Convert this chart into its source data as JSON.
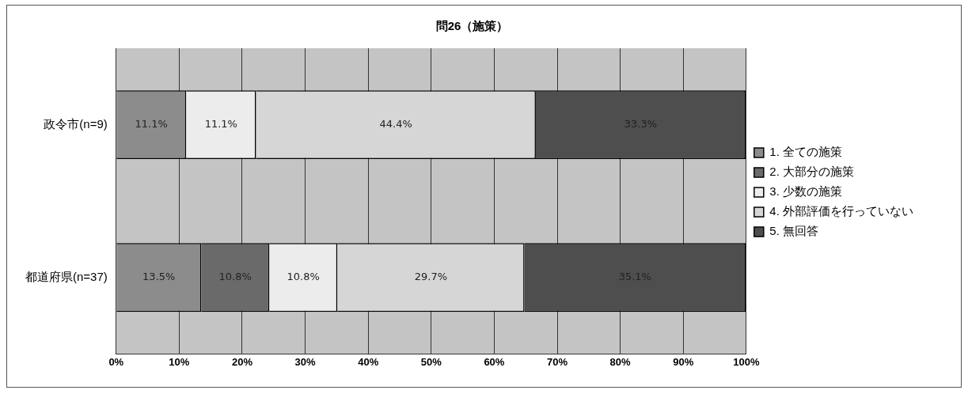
{
  "chart_data": {
    "type": "bar",
    "title": "問26（施策）",
    "orientation": "horizontal",
    "stacked": true,
    "categories": [
      "政令市(n=9)",
      "都道府県(n=37)"
    ],
    "series": [
      {
        "name": "1. 全ての施策",
        "color": "#8c8c8c",
        "values": [
          11.1,
          13.5
        ],
        "value_labels": [
          "11.1%",
          "13.5%"
        ]
      },
      {
        "name": "2. 大部分の施策",
        "color": "#6a6a6a",
        "values": [
          0,
          10.8
        ],
        "value_labels": [
          null,
          "10.8%"
        ]
      },
      {
        "name": "3. 少数の施策",
        "color": "#ececec",
        "values": [
          11.1,
          10.8
        ],
        "value_labels": [
          "11.1%",
          "10.8%"
        ]
      },
      {
        "name": "4. 外部評価を行っていない",
        "color": "#d6d6d6",
        "values": [
          44.4,
          29.7
        ],
        "value_labels": [
          "44.4%",
          "29.7%"
        ]
      },
      {
        "name": "5. 無回答",
        "color": "#4e4e4e",
        "values": [
          33.3,
          35.1
        ],
        "value_labels": [
          "33.3%",
          "35.1%"
        ]
      }
    ],
    "xlim": [
      0,
      100
    ],
    "xticks": [
      {
        "value": 0,
        "label": "0%"
      },
      {
        "value": 10,
        "label": "10%"
      },
      {
        "value": 20,
        "label": "20%"
      },
      {
        "value": 30,
        "label": "30%"
      },
      {
        "value": 40,
        "label": "40%"
      },
      {
        "value": 50,
        "label": "50%"
      },
      {
        "value": 60,
        "label": "60%"
      },
      {
        "value": 70,
        "label": "70%"
      },
      {
        "value": 80,
        "label": "80%"
      },
      {
        "value": 90,
        "label": "90%"
      },
      {
        "value": 100,
        "label": "100%"
      }
    ],
    "grid": "x",
    "legend": "right"
  }
}
